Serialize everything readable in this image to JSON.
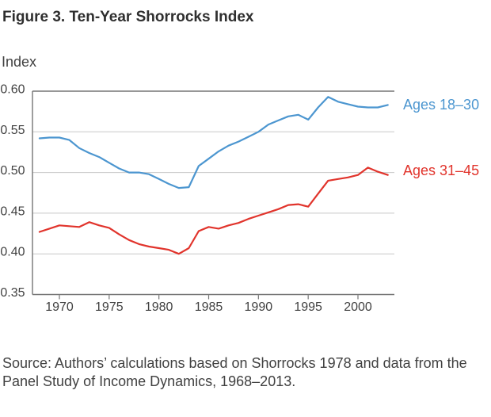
{
  "figure": {
    "title": "Figure 3. Ten-Year Shorrocks Index",
    "axis_unit_label": "Index",
    "source_note": "Source: Authors’ calculations based on Shorrocks 1978 and data from the Panel Study of Income Dynamics, 1968–2013."
  },
  "colors": {
    "series_blue": "#4c96d0",
    "series_red": "#e1342c",
    "grid": "#c7c7c7",
    "axis": "#757575",
    "title_text": "#2f2f2f",
    "body_text": "#414141"
  },
  "chart_data": {
    "type": "line",
    "title": "Figure 3. Ten-Year Shorrocks Index",
    "ylabel": "Index",
    "xlabel": "",
    "ylim": [
      0.35,
      0.6
    ],
    "yticks": [
      "0.35",
      "0.40",
      "0.45",
      "0.50",
      "0.55",
      "0.60"
    ],
    "xticks": [
      1970,
      1975,
      1980,
      1985,
      1990,
      1995,
      2000
    ],
    "grid": "horizontal-only",
    "legend_position": "right-of-line-ends",
    "x": [
      1968,
      1969,
      1970,
      1971,
      1972,
      1973,
      1974,
      1975,
      1976,
      1977,
      1978,
      1979,
      1980,
      1981,
      1982,
      1983,
      1984,
      1985,
      1986,
      1987,
      1988,
      1989,
      1990,
      1991,
      1992,
      1993,
      1994,
      1995,
      1996,
      1997,
      1998,
      1999,
      2000,
      2001,
      2002,
      2003
    ],
    "series": [
      {
        "name": "Ages 18–30",
        "color": "#4c96d0",
        "values": [
          0.542,
          0.543,
          0.543,
          0.54,
          0.53,
          0.524,
          0.519,
          0.512,
          0.505,
          0.5,
          0.5,
          0.498,
          0.492,
          0.486,
          0.481,
          0.482,
          0.508,
          0.517,
          0.526,
          0.533,
          0.538,
          0.544,
          0.55,
          0.559,
          0.564,
          0.569,
          0.571,
          0.565,
          0.58,
          0.593,
          0.587,
          0.584,
          0.581,
          0.58,
          0.58,
          0.583
        ]
      },
      {
        "name": "Ages 31–45",
        "color": "#e1342c",
        "values": [
          0.427,
          0.431,
          0.435,
          0.434,
          0.433,
          0.439,
          0.435,
          0.432,
          0.424,
          0.417,
          0.412,
          0.409,
          0.407,
          0.405,
          0.4,
          0.407,
          0.428,
          0.433,
          0.431,
          0.435,
          0.438,
          0.443,
          0.447,
          0.451,
          0.455,
          0.46,
          0.461,
          0.458,
          0.474,
          0.49,
          0.492,
          0.494,
          0.497,
          0.506,
          0.501,
          0.497
        ]
      }
    ]
  }
}
